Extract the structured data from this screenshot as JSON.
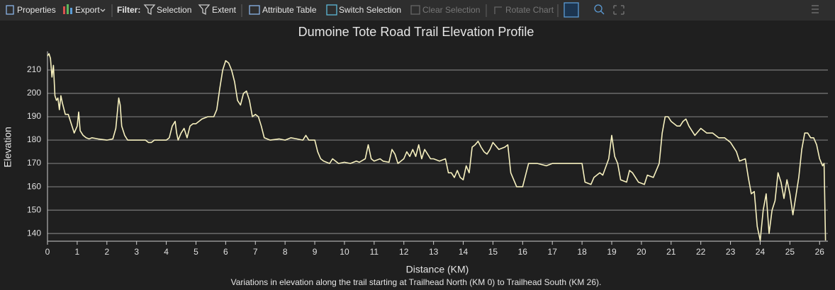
{
  "toolbar": {
    "items": [
      {
        "label": "Properties",
        "enabled": true
      },
      {
        "label": "Export",
        "enabled": true
      },
      {
        "label": "Filter:",
        "enabled": true
      },
      {
        "label": "Selection",
        "enabled": true
      },
      {
        "label": "Extent",
        "enabled": true
      },
      {
        "label": "Attribute Table",
        "enabled": true
      },
      {
        "label": "Switch Selection",
        "enabled": true
      },
      {
        "label": "Clear Selection",
        "enabled": false
      },
      {
        "label": "Rotate Chart",
        "enabled": false
      }
    ]
  },
  "chart_data": {
    "type": "line",
    "title": "Dumoine Tote Road Trail Elevation Profile",
    "subtitle": "Variations in elevation along the trail starting at Trailhead North (KM 0) to Trailhead South (KM 26).",
    "x_label": "Distance (KM)",
    "y_label": "Elevation",
    "color": "#f7f1bf",
    "grid": true,
    "xlim": [
      0,
      26.28
    ],
    "ylim": [
      136.7,
      218
    ],
    "xticks": [
      0,
      1,
      2,
      3,
      4,
      5,
      6,
      7,
      8,
      9,
      10,
      11,
      12,
      13,
      14,
      15,
      16,
      17,
      18,
      19,
      20,
      21,
      22,
      23,
      24,
      25,
      26
    ],
    "yticks": [
      140,
      150,
      160,
      170,
      180,
      190,
      200,
      210
    ],
    "x": [
      0,
      0.05,
      0.1,
      0.15,
      0.2,
      0.25,
      0.3,
      0.35,
      0.4,
      0.45,
      0.5,
      0.6,
      0.7,
      0.8,
      0.9,
      1.0,
      1.05,
      1.1,
      1.2,
      1.3,
      1.4,
      1.5,
      1.7,
      2.0,
      2.2,
      2.3,
      2.4,
      2.45,
      2.5,
      2.6,
      2.7,
      3.0,
      3.3,
      3.4,
      3.5,
      3.6,
      4.0,
      4.1,
      4.2,
      4.3,
      4.35,
      4.4,
      4.5,
      4.6,
      4.7,
      4.8,
      4.9,
      5.0,
      5.2,
      5.4,
      5.6,
      5.7,
      5.8,
      5.9,
      6.0,
      6.1,
      6.2,
      6.3,
      6.4,
      6.5,
      6.6,
      6.7,
      6.8,
      6.9,
      7.0,
      7.1,
      7.2,
      7.3,
      7.5,
      7.8,
      8.0,
      8.2,
      8.4,
      8.6,
      8.7,
      8.8,
      9.0,
      9.1,
      9.2,
      9.3,
      9.5,
      9.6,
      9.8,
      10.0,
      10.2,
      10.4,
      10.5,
      10.7,
      10.8,
      10.9,
      11.0,
      11.2,
      11.3,
      11.5,
      11.6,
      11.7,
      11.8,
      12.0,
      12.1,
      12.2,
      12.3,
      12.4,
      12.5,
      12.6,
      12.7,
      12.8,
      12.9,
      13.0,
      13.2,
      13.4,
      13.5,
      13.6,
      13.7,
      13.8,
      13.9,
      14.0,
      14.1,
      14.2,
      14.3,
      14.4,
      14.5,
      14.6,
      14.7,
      14.8,
      14.9,
      15.0,
      15.2,
      15.4,
      15.5,
      15.6,
      15.8,
      16.0,
      16.2,
      16.5,
      16.8,
      17.0,
      17.2,
      17.5,
      18.0,
      18.1,
      18.3,
      18.4,
      18.6,
      18.7,
      18.9,
      19.0,
      19.1,
      19.2,
      19.3,
      19.5,
      19.6,
      19.7,
      19.9,
      20.1,
      20.2,
      20.4,
      20.6,
      20.7,
      20.8,
      20.9,
      21.0,
      21.2,
      21.3,
      21.4,
      21.5,
      21.6,
      21.8,
      22.0,
      22.2,
      22.4,
      22.6,
      22.8,
      23.0,
      23.2,
      23.3,
      23.5,
      23.6,
      23.7,
      23.8,
      23.9,
      24.0,
      24.1,
      24.2,
      24.3,
      24.4,
      24.5,
      24.6,
      24.7,
      24.8,
      24.9,
      25.0,
      25.1,
      25.2,
      25.3,
      25.4,
      25.5,
      25.6,
      25.7,
      25.8,
      25.9,
      26.0,
      26.1,
      26.15,
      26.2
    ],
    "values": [
      216,
      217,
      215,
      207,
      212,
      199,
      197,
      198,
      193,
      199,
      196,
      191,
      191,
      187,
      183,
      186,
      192,
      184,
      182,
      181,
      180.5,
      181,
      180.5,
      180,
      180.5,
      185,
      198,
      195,
      186,
      182,
      180,
      180,
      180,
      179,
      179,
      180,
      180,
      181,
      186,
      188,
      183,
      180,
      183,
      185,
      181,
      186,
      187,
      187,
      189,
      190,
      190,
      193,
      202,
      210,
      214,
      213,
      210,
      205,
      197,
      195,
      200,
      201,
      197,
      190,
      191,
      190,
      186,
      181,
      180,
      180.5,
      180,
      181,
      180.5,
      180,
      182,
      180,
      180,
      175,
      172,
      171,
      170,
      172,
      170,
      170.5,
      170,
      171,
      170.5,
      172,
      178,
      172,
      171,
      172,
      171,
      170.5,
      176,
      174,
      170,
      172,
      175,
      173,
      176,
      173,
      178,
      172,
      176,
      174,
      172,
      172,
      171,
      172,
      166,
      166,
      164,
      167,
      164,
      163,
      169,
      166,
      177,
      178,
      179.5,
      177,
      175,
      174,
      176,
      179,
      176,
      177,
      178,
      166,
      160,
      160,
      170,
      170,
      169,
      170,
      170,
      170,
      170,
      162,
      161,
      164,
      166,
      165,
      172,
      182,
      173,
      170,
      163,
      162,
      167,
      166,
      162,
      161,
      165,
      164,
      170,
      183,
      190,
      190,
      188,
      186,
      186,
      188,
      189,
      186,
      182,
      185,
      183,
      183,
      181,
      181,
      179,
      175,
      171,
      172,
      164,
      157,
      158,
      143,
      137,
      150,
      157,
      140,
      150,
      154,
      166,
      162,
      155,
      163,
      157,
      148,
      156,
      164,
      176,
      183,
      183,
      181,
      181,
      178,
      172,
      169,
      170,
      137
    ]
  }
}
